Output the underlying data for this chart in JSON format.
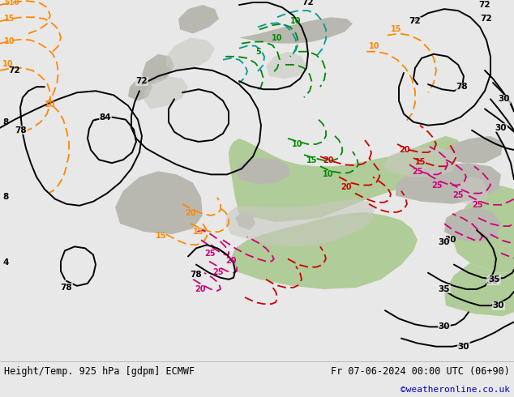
{
  "title_left": "Height/Temp. 925 hPa [gdpm] ECMWF",
  "title_right": "Fr 07-06-2024 00:00 UTC (06+90)",
  "credit": "©weatheronline.co.uk",
  "bg_color": "#e8e8e8",
  "bottom_bar_color": "#ffffff",
  "credit_color": "#0000cc",
  "fig_width": 6.34,
  "fig_height": 4.9,
  "dpi": 100,
  "land_gray": "#c8c8c0",
  "land_green": "#aaccaa",
  "sea_gray": "#d8d8d0",
  "black": "#000000",
  "orange": "#ff8800",
  "green": "#008800",
  "cyan": "#009999",
  "red": "#cc0000",
  "magenta": "#cc0077"
}
